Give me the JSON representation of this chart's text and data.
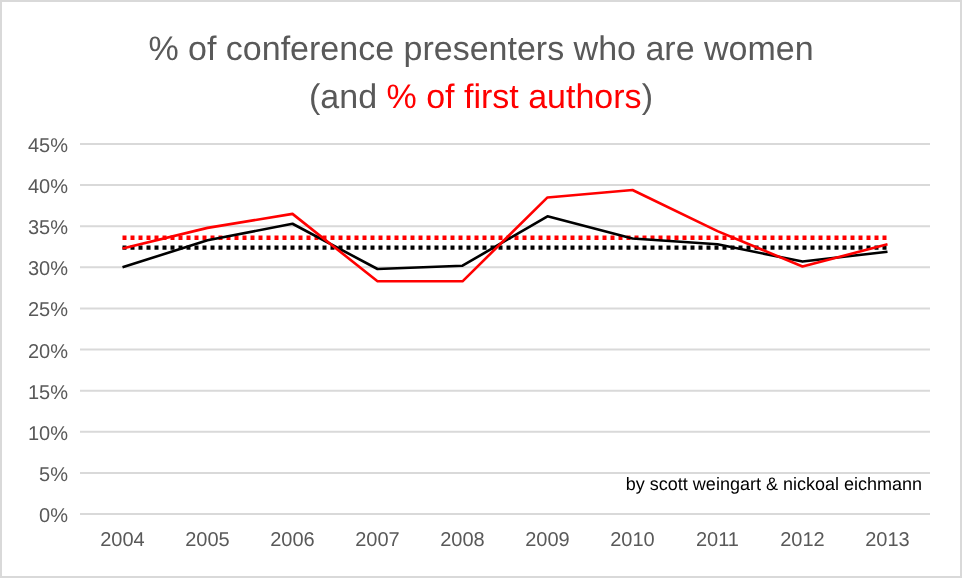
{
  "chart_data": {
    "type": "line",
    "title": "% of conference presenters who are women",
    "subtitle": "(and % of first authors)",
    "categories": [
      "2004",
      "2005",
      "2006",
      "2007",
      "2008",
      "2009",
      "2010",
      "2011",
      "2012",
      "2013"
    ],
    "series": [
      {
        "color": "#000000",
        "values": [
          30.0,
          33.3,
          35.3,
          29.8,
          30.2,
          36.2,
          33.5,
          32.8,
          30.7,
          31.9
        ]
      },
      {
        "color": "#ff0000",
        "values": [
          32.3,
          34.8,
          36.5,
          28.3,
          28.3,
          38.5,
          39.4,
          34.4,
          30.1,
          32.8
        ]
      }
    ],
    "ref_lines": [
      {
        "axis": "y",
        "value": 33.6,
        "color": "#ff0000",
        "line_style": "dotted"
      },
      {
        "axis": "y",
        "value": 32.4,
        "color": "#000000",
        "line_style": "dotted"
      }
    ],
    "ylim": [
      0,
      45
    ],
    "yticks": [
      {
        "value": 0,
        "label": "0%"
      },
      {
        "value": 5,
        "label": "5%"
      },
      {
        "value": 10,
        "label": "10%"
      },
      {
        "value": 15,
        "label": "15%"
      },
      {
        "value": 20,
        "label": "20%"
      },
      {
        "value": 25,
        "label": "25%"
      },
      {
        "value": 30,
        "label": "30%"
      },
      {
        "value": 35,
        "label": "35%"
      },
      {
        "value": 40,
        "label": "40%"
      },
      {
        "value": 45,
        "label": "45%"
      }
    ],
    "grid": "y",
    "marker": "none",
    "line_style": "solid",
    "annotations": [
      "by scott weingart & nickoal eichmann"
    ]
  }
}
